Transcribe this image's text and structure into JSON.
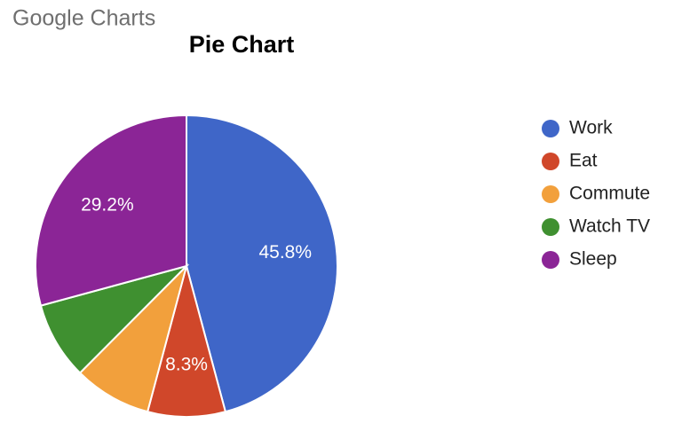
{
  "brand": "Google Charts",
  "chart_data": {
    "type": "pie",
    "title": "Pie Chart",
    "categories": [
      "Work",
      "Eat",
      "Commute",
      "Watch TV",
      "Sleep"
    ],
    "values": [
      45.8,
      8.3,
      8.3,
      8.3,
      29.2
    ],
    "value_labels": [
      "45.8%",
      "8.3%",
      null,
      null,
      "29.2%"
    ],
    "colors": [
      "#3f66c8",
      "#d0472a",
      "#f2a03c",
      "#3f9030",
      "#8b2596"
    ],
    "legend": "right"
  }
}
